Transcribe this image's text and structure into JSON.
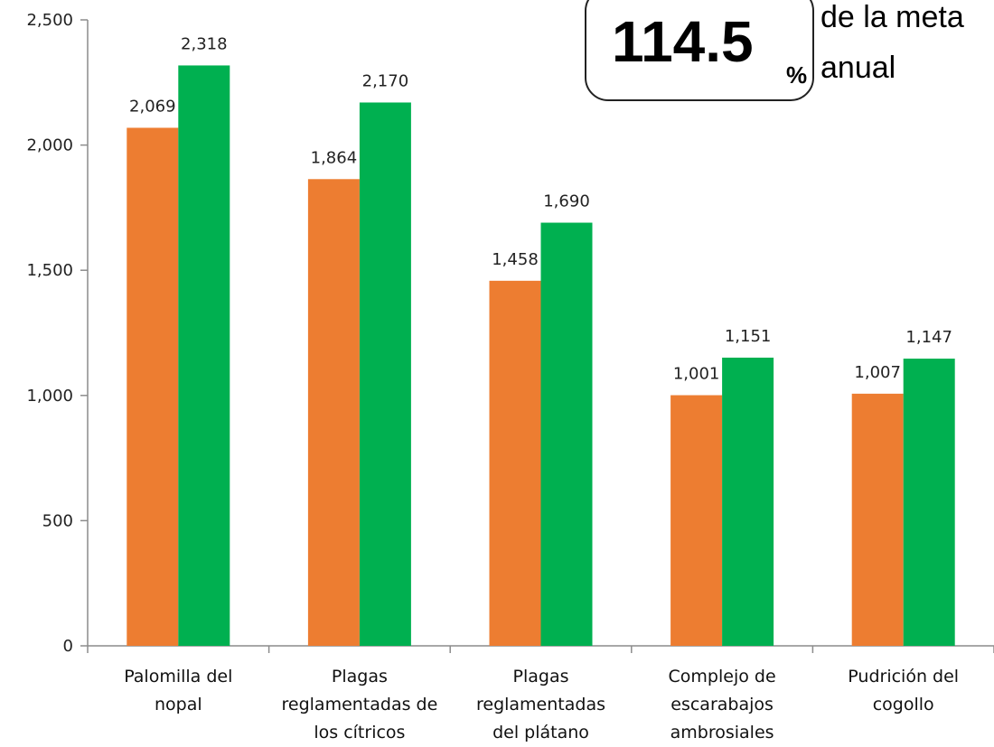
{
  "callout": {
    "value": "114.5",
    "unit": "%",
    "line1": "de la meta",
    "line2": "anual"
  },
  "colors": {
    "series1": "#ED7D31",
    "series2": "#00B050",
    "axis": "#8c8c8c"
  },
  "chart_data": {
    "type": "bar",
    "categories": [
      [
        "Palomilla del",
        "nopal"
      ],
      [
        "Plagas",
        "reglamentadas de",
        "los cítricos"
      ],
      [
        "Plagas",
        "reglamentadas",
        "del plátano"
      ],
      [
        "Complejo de",
        "escarabajos",
        "ambrosiales"
      ],
      [
        "Pudrición del",
        "cogollo"
      ]
    ],
    "series": [
      {
        "values": [
          2069,
          1864,
          1458,
          1001,
          1007
        ],
        "labels": [
          "2,069",
          "1,864",
          "1,458",
          "1,001",
          "1,007"
        ]
      },
      {
        "values": [
          2318,
          2170,
          1690,
          1151,
          1147
        ],
        "labels": [
          "2,318",
          "2,170",
          "1,690",
          "1,151",
          "1,147"
        ]
      }
    ],
    "yticks": [
      0,
      500,
      1000,
      1500,
      2000,
      2500
    ],
    "ytick_labels": [
      "0",
      "500",
      "1,000",
      "1,500",
      "2,000",
      "2,500"
    ],
    "ylim": [
      0,
      2500
    ],
    "grid": false,
    "legend": "none"
  }
}
